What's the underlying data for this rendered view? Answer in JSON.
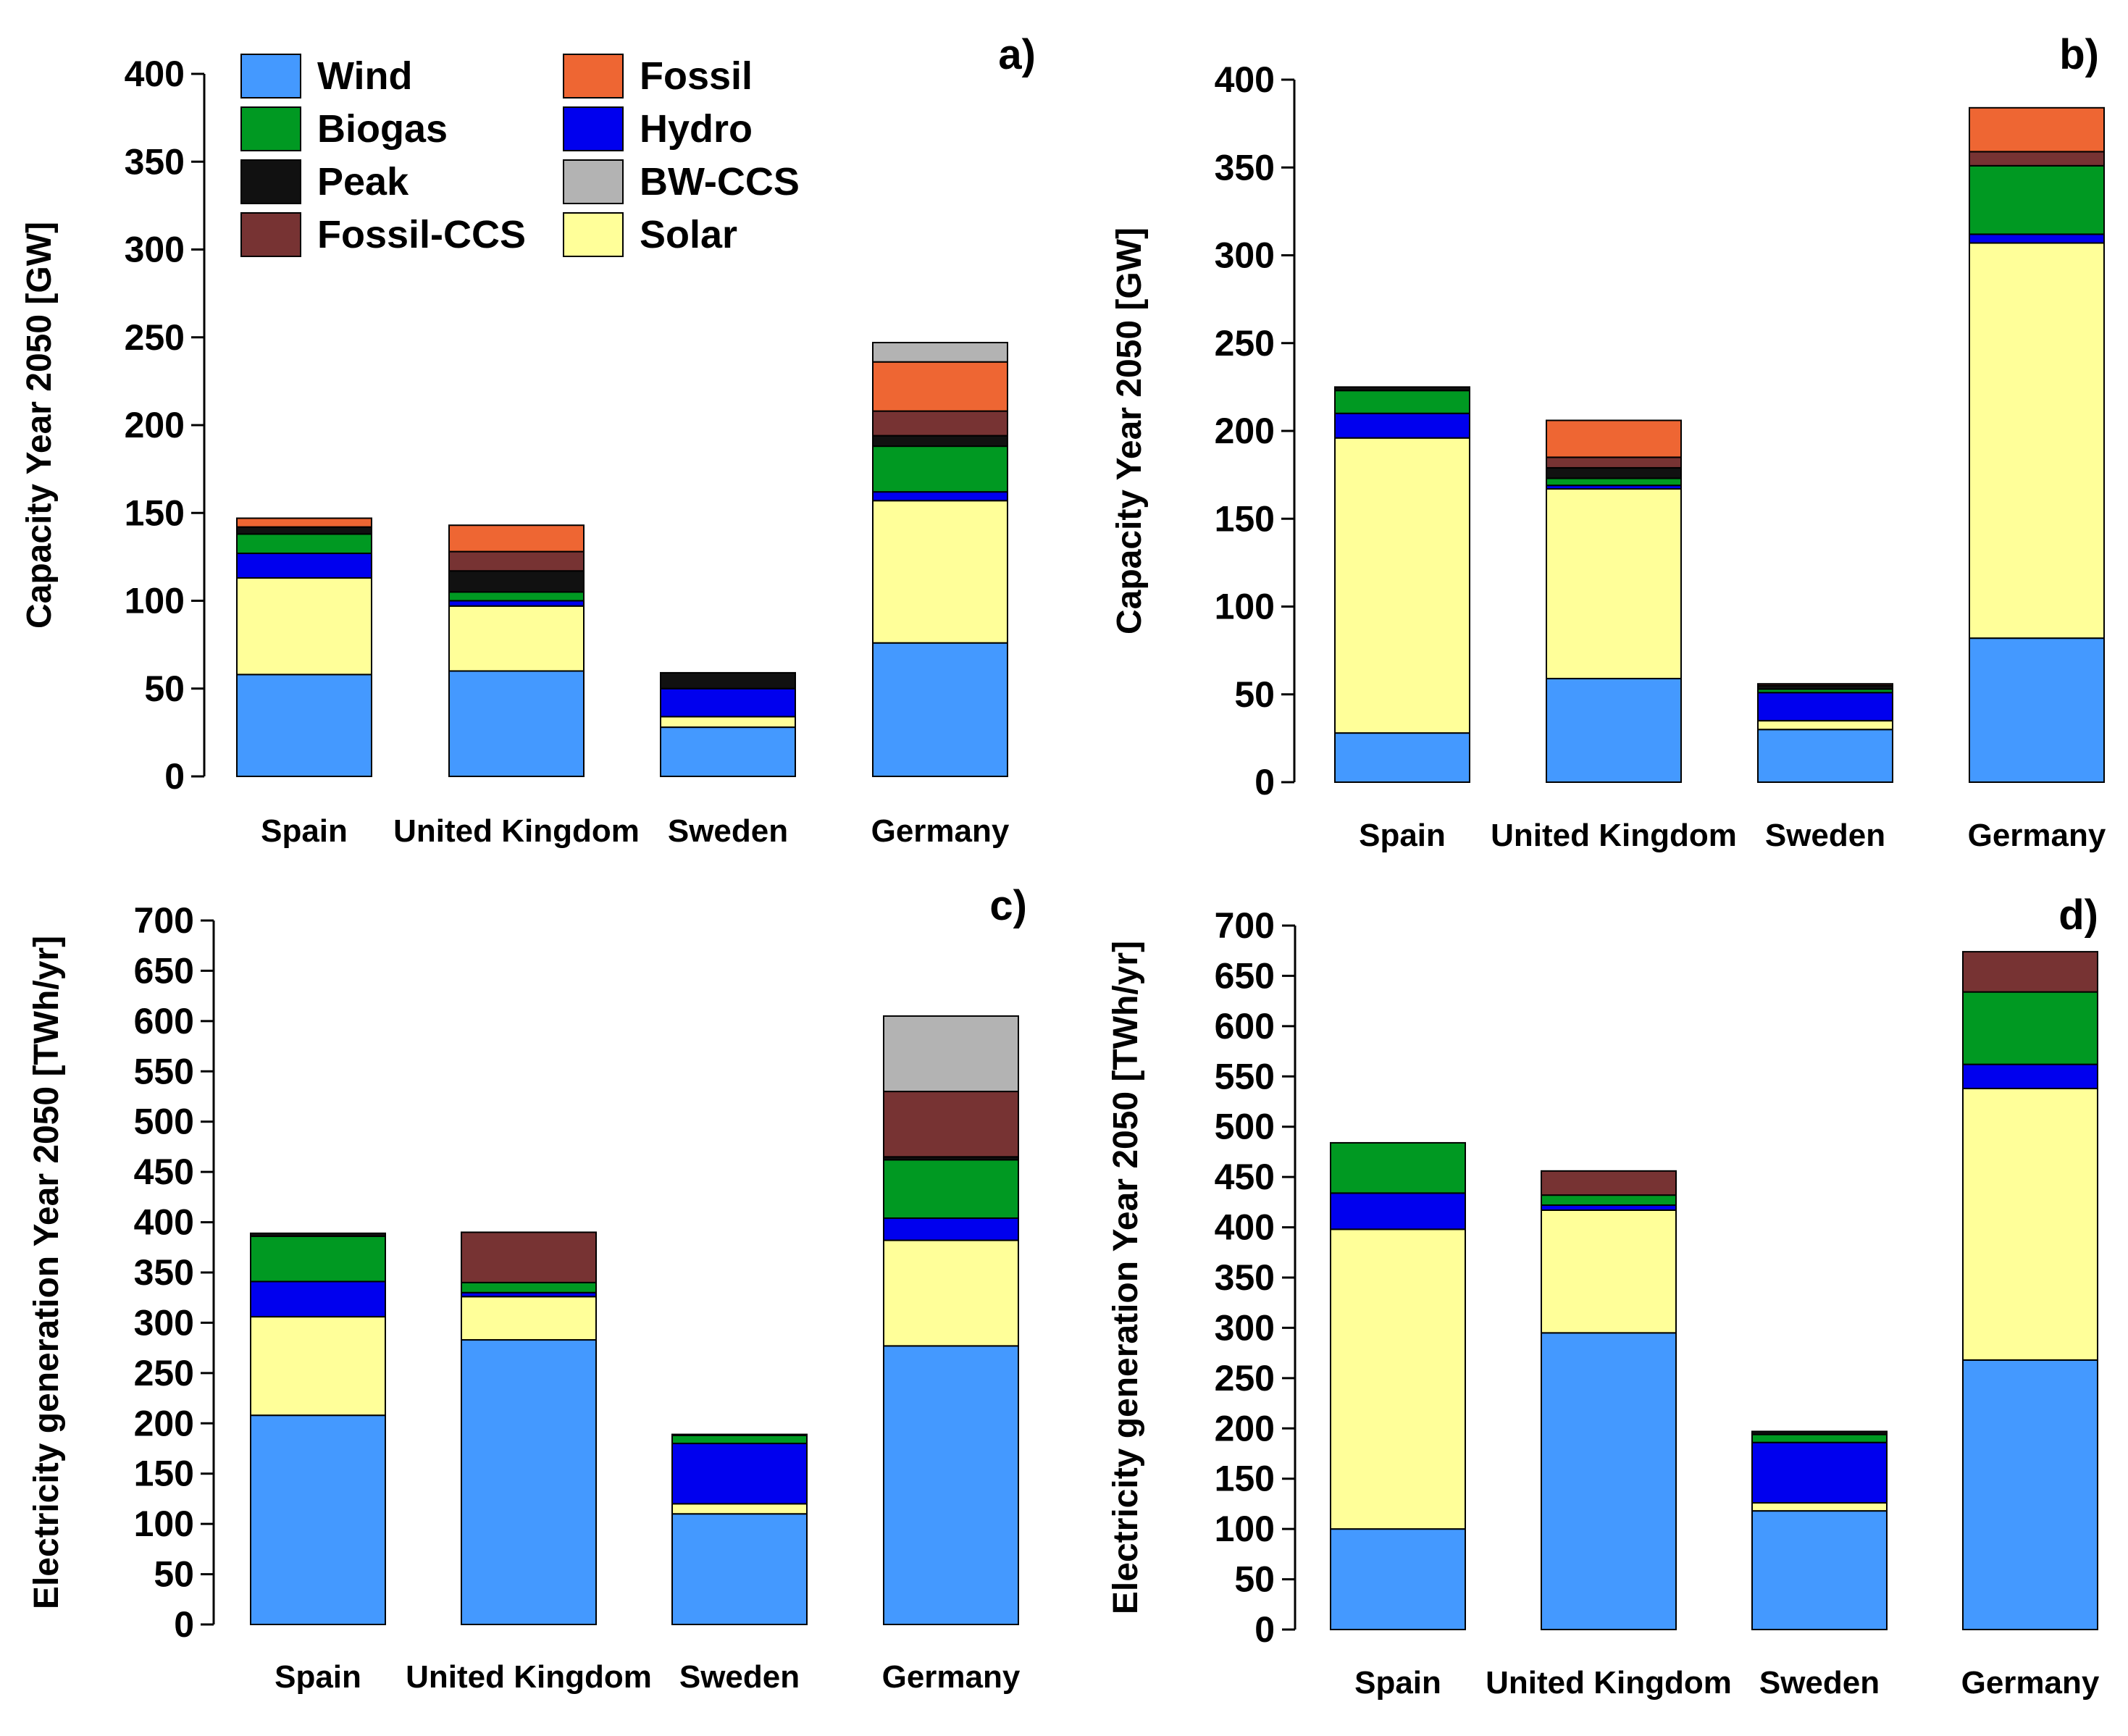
{
  "colors": {
    "Wind": "#4499ff",
    "Biogas": "#009922",
    "Peak": "#111111",
    "Fossil-CCS": "#773333",
    "Fossil": "#ee6633",
    "Hydro": "#0000ee",
    "BW-CCS": "#b3b3b3",
    "Solar": "#ffff99"
  },
  "legend": [
    "Wind",
    "Fossil",
    "Biogas",
    "Hydro",
    "Peak",
    "BW-CCS",
    "Fossil-CCS",
    "Solar"
  ],
  "chart_data": [
    {
      "type": "bar",
      "stacked": true,
      "panel": "a)",
      "ylabel": "Capacity Year 2050 [GW]",
      "ylim": [
        0,
        400
      ],
      "yticks": [
        0,
        50,
        100,
        150,
        200,
        250,
        300,
        350,
        400
      ],
      "categories": [
        "Spain",
        "United Kingdom",
        "Sweden",
        "Germany"
      ],
      "series": [
        {
          "name": "Wind",
          "values": [
            58,
            60,
            28,
            76
          ]
        },
        {
          "name": "Solar",
          "values": [
            55,
            37,
            6,
            81
          ]
        },
        {
          "name": "Hydro",
          "values": [
            14,
            3,
            16,
            5
          ]
        },
        {
          "name": "Biogas",
          "values": [
            11,
            5,
            0,
            26
          ]
        },
        {
          "name": "Peak",
          "values": [
            4,
            12,
            9,
            6
          ]
        },
        {
          "name": "Fossil-CCS",
          "values": [
            0,
            11,
            0,
            14
          ]
        },
        {
          "name": "Fossil",
          "values": [
            5,
            15,
            0,
            28
          ]
        },
        {
          "name": "BW-CCS",
          "values": [
            0,
            0,
            0,
            11
          ]
        }
      ]
    },
    {
      "type": "bar",
      "stacked": true,
      "panel": "b)",
      "ylabel": "Capacity Year 2050 [GW]",
      "ylim": [
        0,
        400
      ],
      "yticks": [
        0,
        50,
        100,
        150,
        200,
        250,
        300,
        350,
        400
      ],
      "categories": [
        "Spain",
        "United Kingdom",
        "Sweden",
        "Germany"
      ],
      "series": [
        {
          "name": "Wind",
          "values": [
            28,
            59,
            30,
            82
          ]
        },
        {
          "name": "Solar",
          "values": [
            168,
            108,
            5,
            225
          ]
        },
        {
          "name": "Hydro",
          "values": [
            14,
            2,
            16,
            5
          ]
        },
        {
          "name": "Biogas",
          "values": [
            13,
            4,
            2,
            39
          ]
        },
        {
          "name": "Peak",
          "values": [
            2,
            6,
            2,
            0
          ]
        },
        {
          "name": "Fossil-CCS",
          "values": [
            0,
            6,
            1,
            8
          ]
        },
        {
          "name": "Fossil",
          "values": [
            0,
            21,
            0,
            25
          ]
        },
        {
          "name": "BW-CCS",
          "values": [
            0,
            0,
            0,
            0
          ]
        }
      ]
    },
    {
      "type": "bar",
      "stacked": true,
      "panel": "c)",
      "ylabel": "Electricity generation Year 2050 [TWh/yr]",
      "ylim": [
        0,
        700
      ],
      "yticks": [
        0,
        50,
        100,
        150,
        200,
        250,
        300,
        350,
        400,
        450,
        500,
        550,
        600,
        650,
        700
      ],
      "categories": [
        "Spain",
        "United Kingdom",
        "Sweden",
        "Germany"
      ],
      "series": [
        {
          "name": "Wind",
          "values": [
            208,
            283,
            110,
            277
          ]
        },
        {
          "name": "Solar",
          "values": [
            98,
            43,
            10,
            105
          ]
        },
        {
          "name": "Hydro",
          "values": [
            35,
            4,
            60,
            22
          ]
        },
        {
          "name": "Biogas",
          "values": [
            45,
            10,
            8,
            58
          ]
        },
        {
          "name": "Peak",
          "values": [
            3,
            0,
            1,
            3
          ]
        },
        {
          "name": "Fossil-CCS",
          "values": [
            0,
            50,
            0,
            65
          ]
        },
        {
          "name": "Fossil",
          "values": [
            0,
            0,
            0,
            0
          ]
        },
        {
          "name": "BW-CCS",
          "values": [
            0,
            0,
            0,
            75
          ]
        }
      ]
    },
    {
      "type": "bar",
      "stacked": true,
      "panel": "d)",
      "ylabel": "Electricity generation Year 2050 [TWh/yr]",
      "ylim": [
        0,
        700
      ],
      "yticks": [
        0,
        50,
        100,
        150,
        200,
        250,
        300,
        350,
        400,
        450,
        500,
        550,
        600,
        650,
        700
      ],
      "categories": [
        "Spain",
        "United Kingdom",
        "Sweden",
        "Germany"
      ],
      "series": [
        {
          "name": "Wind",
          "values": [
            100,
            295,
            118,
            268
          ]
        },
        {
          "name": "Solar",
          "values": [
            298,
            122,
            8,
            270
          ]
        },
        {
          "name": "Hydro",
          "values": [
            36,
            5,
            60,
            24
          ]
        },
        {
          "name": "Biogas",
          "values": [
            50,
            10,
            8,
            72
          ]
        },
        {
          "name": "Peak",
          "values": [
            0,
            0,
            3,
            0
          ]
        },
        {
          "name": "Fossil-CCS",
          "values": [
            0,
            24,
            0,
            40
          ]
        },
        {
          "name": "Fossil",
          "values": [
            0,
            0,
            0,
            0
          ]
        },
        {
          "name": "BW-CCS",
          "values": [
            0,
            0,
            0,
            0
          ]
        }
      ]
    }
  ]
}
